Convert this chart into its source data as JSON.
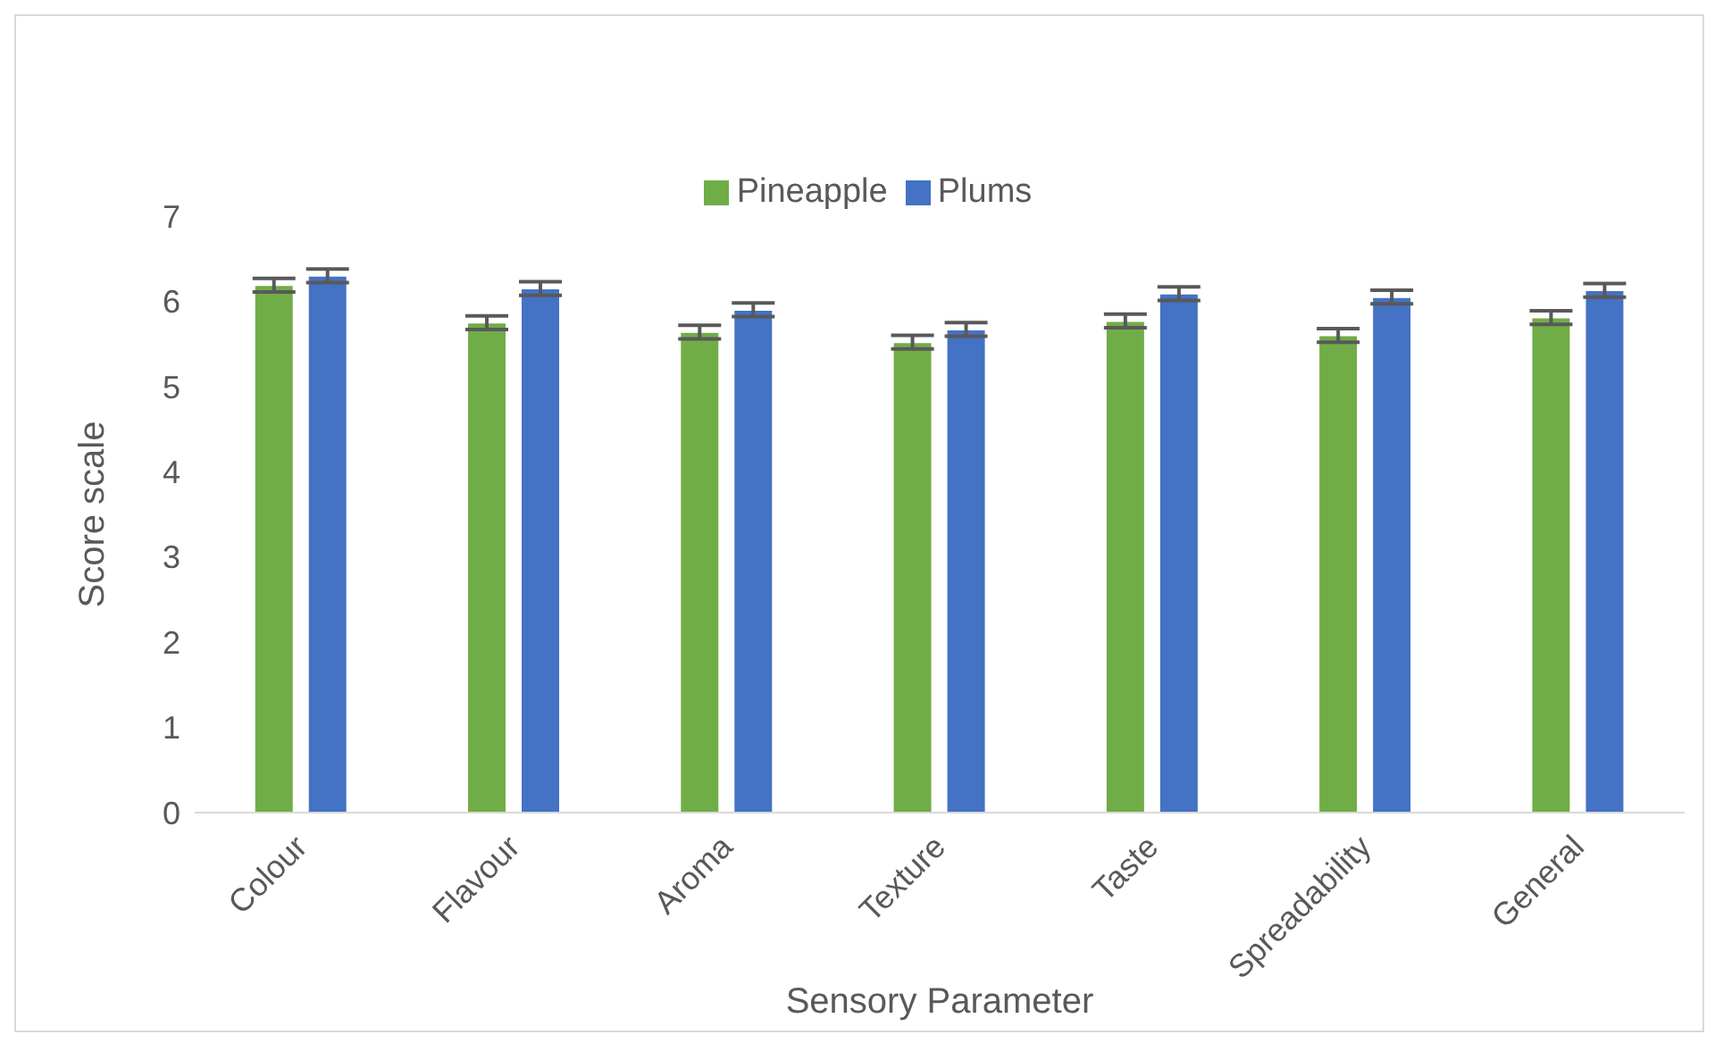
{
  "chart_data": {
    "type": "bar",
    "xlabel": "Sensory Parameter",
    "ylabel": "Score scale",
    "categories": [
      "Colour",
      "Flavour",
      "Aroma",
      "Texture",
      "Taste",
      "Spreadability",
      "General"
    ],
    "series": [
      {
        "name": "Pineapple",
        "color": "#70ad47",
        "values": [
          6.19,
          5.75,
          5.64,
          5.52,
          5.77,
          5.6,
          5.81
        ],
        "errors": [
          0.08,
          0.08,
          0.08,
          0.08,
          0.08,
          0.08,
          0.08
        ]
      },
      {
        "name": "Plums",
        "color": "#4472c4",
        "values": [
          6.3,
          6.15,
          5.9,
          5.67,
          6.09,
          6.05,
          6.13
        ],
        "errors": [
          0.08,
          0.08,
          0.08,
          0.08,
          0.08,
          0.08,
          0.08
        ]
      }
    ],
    "ylim": [
      0,
      7
    ],
    "yticks": [
      0,
      1,
      2,
      3,
      4,
      5,
      6,
      7
    ],
    "grid": false,
    "legend": "top"
  }
}
